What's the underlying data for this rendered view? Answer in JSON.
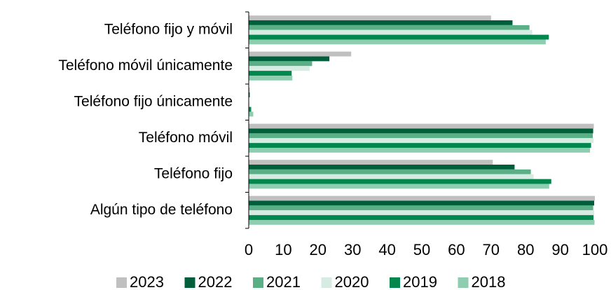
{
  "chart_data": {
    "type": "hbar",
    "categories": [
      "Teléfono fijo y móvil",
      "Teléfono móvil únicamente",
      "Teléfono fijo únicamente",
      "Teléfono móvil",
      "Teléfono fijo",
      "Algún tipo de teléfono"
    ],
    "series": [
      {
        "name": "2023",
        "color": "#c0c0c0",
        "values": [
          70.0,
          29.6,
          0.3,
          99.7,
          70.5,
          100
        ]
      },
      {
        "name": "2022",
        "color": "#005f3b",
        "values": [
          76.2,
          23.3,
          0.3,
          99.5,
          76.8,
          99.8
        ]
      },
      {
        "name": "2021",
        "color": "#5aaf86",
        "values": [
          81.1,
          18.3,
          0.1,
          99.4,
          81.5,
          99.5
        ]
      },
      {
        "name": "2020",
        "color": "#d6ece2",
        "values": [
          81.9,
          17.6,
          0.2,
          99.6,
          82.3,
          99.8
        ]
      },
      {
        "name": "2019",
        "color": "#00874d",
        "values": [
          86.7,
          12.4,
          0.7,
          98.9,
          87.4,
          99.6
        ]
      },
      {
        "name": "2018",
        "color": "#8fcdb0",
        "values": [
          85.8,
          12.6,
          1.3,
          98.6,
          86.8,
          99.9
        ]
      }
    ],
    "xlim": [
      0,
      100
    ],
    "xticks": [
      0,
      10,
      20,
      30,
      40,
      50,
      60,
      70,
      80,
      90,
      100
    ],
    "grid": false,
    "legend": "bottom"
  }
}
